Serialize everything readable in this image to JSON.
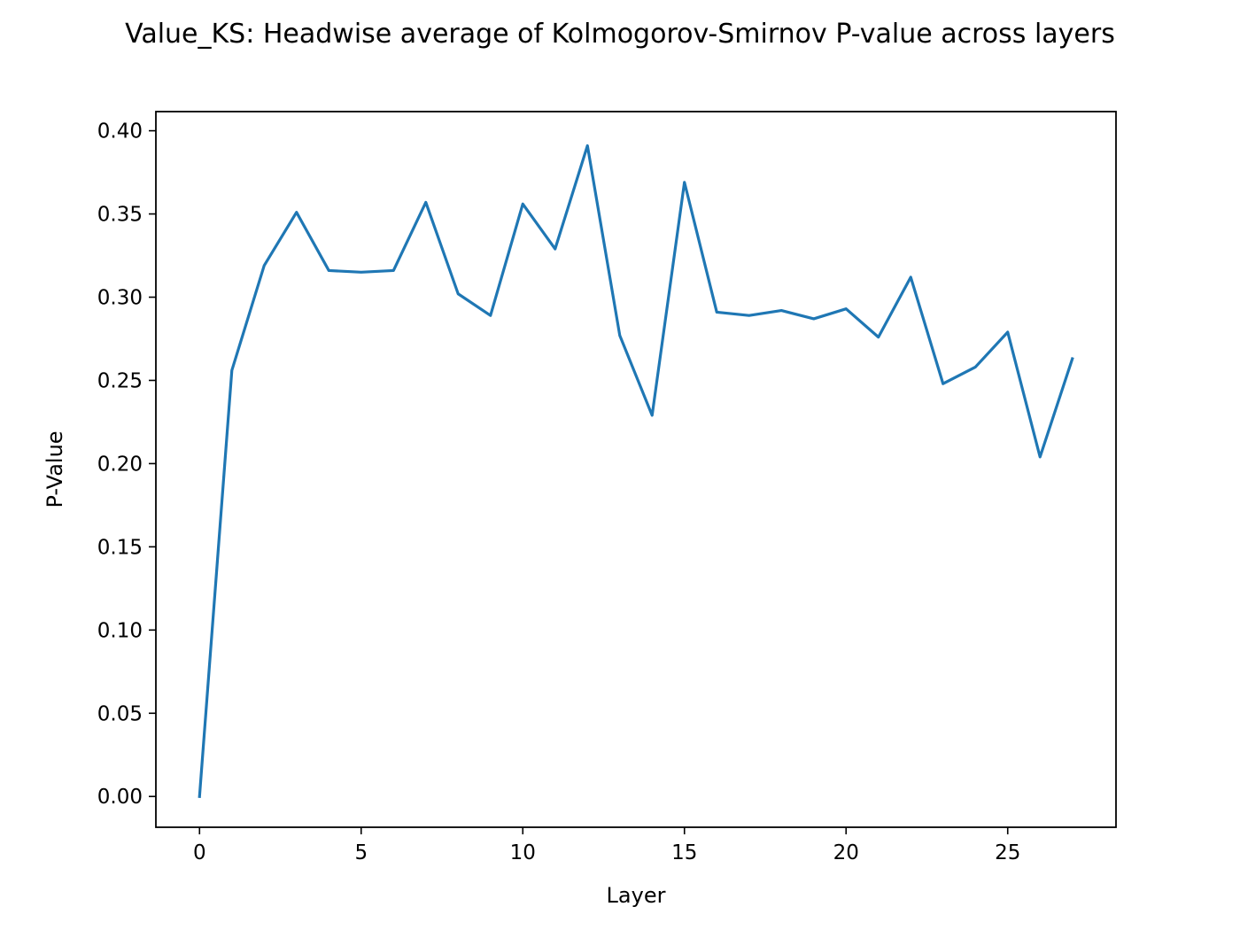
{
  "chart_data": {
    "type": "line",
    "title": "Value_KS: Headwise average of Kolmogorov-Smirnov P-value across layers",
    "xlabel": "Layer",
    "ylabel": "P-Value",
    "xlim": [
      -1.35,
      28.35
    ],
    "ylim": [
      -0.0185,
      0.4115
    ],
    "xticks": [
      0,
      5,
      10,
      15,
      20,
      25
    ],
    "xtick_labels": [
      "0",
      "5",
      "10",
      "15",
      "20",
      "25"
    ],
    "yticks": [
      0.0,
      0.05,
      0.1,
      0.15,
      0.2,
      0.25,
      0.3,
      0.35,
      0.4
    ],
    "ytick_labels": [
      "0.00",
      "0.05",
      "0.10",
      "0.15",
      "0.20",
      "0.25",
      "0.30",
      "0.35",
      "0.40"
    ],
    "grid": false,
    "legend": "none",
    "series": [
      {
        "color": "#1f77b4",
        "x": [
          0,
          1,
          2,
          3,
          4,
          5,
          6,
          7,
          8,
          9,
          10,
          11,
          12,
          13,
          14,
          15,
          16,
          17,
          18,
          19,
          20,
          21,
          22,
          23,
          24,
          25,
          26,
          27
        ],
        "y": [
          0.0,
          0.256,
          0.319,
          0.351,
          0.316,
          0.315,
          0.316,
          0.357,
          0.302,
          0.289,
          0.356,
          0.329,
          0.391,
          0.277,
          0.229,
          0.369,
          0.291,
          0.289,
          0.292,
          0.287,
          0.293,
          0.276,
          0.312,
          0.248,
          0.258,
          0.279,
          0.204,
          0.263
        ]
      }
    ]
  }
}
